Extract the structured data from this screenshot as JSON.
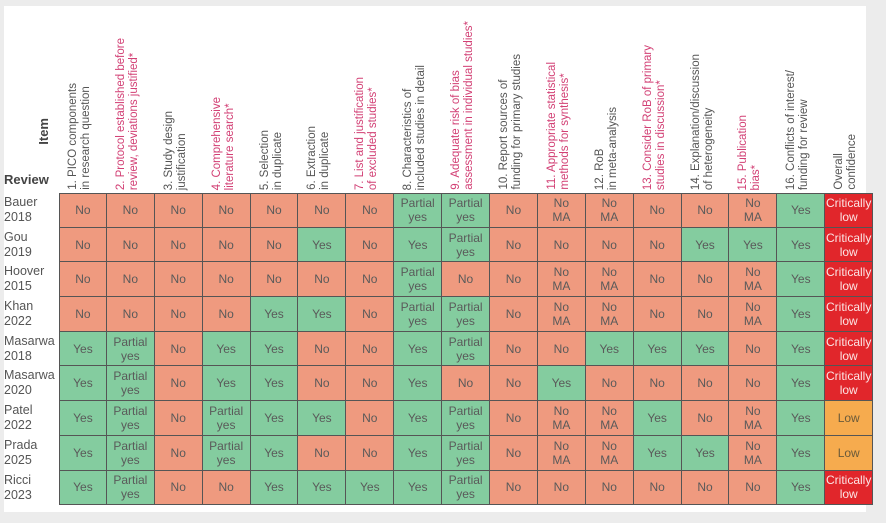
{
  "labels": {
    "item": "Item",
    "review": "Review"
  },
  "colors": {
    "no": "#ef9a7f",
    "yes": "#84cc9f",
    "critically_low": "#e1262b",
    "low": "#f6ab4e",
    "highlight_text": "#d23f74"
  },
  "headers": [
    {
      "lines": [
        "1. PICO components",
        "in research question"
      ],
      "highlight": false
    },
    {
      "lines": [
        "2. Protocol established before",
        "review, deviations justified*"
      ],
      "highlight": true
    },
    {
      "lines": [
        "3. Study design",
        "justification"
      ],
      "highlight": false
    },
    {
      "lines": [
        "4. Comprehensive",
        "literature search*"
      ],
      "highlight": true
    },
    {
      "lines": [
        "5. Selection",
        "in duplicate"
      ],
      "highlight": false
    },
    {
      "lines": [
        "6. Extraction",
        "in duplicate"
      ],
      "highlight": false
    },
    {
      "lines": [
        "7. List and justification",
        "of excluded studies*"
      ],
      "highlight": true
    },
    {
      "lines": [
        "8. Characteristics of",
        "included studies in detail"
      ],
      "highlight": false
    },
    {
      "lines": [
        "9. Adequate risk of bias",
        "assessment in individual studies*"
      ],
      "highlight": true
    },
    {
      "lines": [
        "10. Report sources of",
        "funding for primary studies"
      ],
      "highlight": false
    },
    {
      "lines": [
        "11. Appropriate statistical",
        "methods for synthesis*"
      ],
      "highlight": true
    },
    {
      "lines": [
        "12. RoB",
        "in meta-analysis"
      ],
      "highlight": false
    },
    {
      "lines": [
        "13. Consider RoB of primary",
        "studies in discussion*"
      ],
      "highlight": true
    },
    {
      "lines": [
        "14. Explanation/discussion",
        "of heterogeneity"
      ],
      "highlight": false
    },
    {
      "lines": [
        "15. Publication",
        "bias*"
      ],
      "highlight": true
    },
    {
      "lines": [
        "16. Conflicts of interest/",
        "funding for review"
      ],
      "highlight": false
    },
    {
      "lines": [
        "Overall",
        "confidence"
      ],
      "highlight": false
    }
  ],
  "rows": [
    {
      "name": [
        "Bauer",
        "2018"
      ],
      "cells": [
        "No",
        "No",
        "No",
        "No",
        "No",
        "No",
        "No",
        "Partial yes",
        "Partial yes",
        "No",
        "No MA",
        "No MA",
        "No",
        "No",
        "No MA",
        "Yes"
      ],
      "overall": "Critically low"
    },
    {
      "name": [
        "Gou",
        "2019"
      ],
      "cells": [
        "No",
        "No",
        "No",
        "No",
        "No",
        "Yes",
        "No",
        "Yes",
        "Partial yes",
        "No",
        "No",
        "No",
        "No",
        "Yes",
        "Yes",
        "Yes"
      ],
      "overall": "Critically low"
    },
    {
      "name": [
        "Hoover",
        "2015"
      ],
      "cells": [
        "No",
        "No",
        "No",
        "No",
        "No",
        "No",
        "No",
        "Partial yes",
        "No",
        "No",
        "No MA",
        "No MA",
        "No",
        "No",
        "No MA",
        "Yes"
      ],
      "overall": "Critically low"
    },
    {
      "name": [
        "Khan",
        "2022"
      ],
      "cells": [
        "No",
        "No",
        "No",
        "No",
        "Yes",
        "Yes",
        "No",
        "Partial yes",
        "Partial yes",
        "No",
        "No MA",
        "No MA",
        "No",
        "No",
        "No MA",
        "Yes"
      ],
      "overall": "Critically low"
    },
    {
      "name": [
        "Masarwa",
        "2018"
      ],
      "cells": [
        "Yes",
        "Partial yes",
        "No",
        "Yes",
        "Yes",
        "No",
        "No",
        "Yes",
        "Partial yes",
        "No",
        "No",
        "Yes",
        "Yes",
        "Yes",
        "No",
        "Yes"
      ],
      "overall": "Critically low"
    },
    {
      "name": [
        "Masarwa",
        "2020"
      ],
      "cells": [
        "Yes",
        "Partial yes",
        "No",
        "Yes",
        "Yes",
        "No",
        "No",
        "Yes",
        "No",
        "No",
        "Yes",
        "No",
        "No",
        "No",
        "No",
        "Yes"
      ],
      "overall": "Critically low"
    },
    {
      "name": [
        "Patel",
        "2022"
      ],
      "cells": [
        "Yes",
        "Partial yes",
        "No",
        "Partial yes",
        "Yes",
        "Yes",
        "No",
        "Yes",
        "Partial yes",
        "No",
        "No MA",
        "No MA",
        "Yes",
        "No",
        "No MA",
        "Yes"
      ],
      "overall": "Low"
    },
    {
      "name": [
        "Prada",
        "2025"
      ],
      "cells": [
        "Yes",
        "Partial yes",
        "No",
        "Partial yes",
        "Yes",
        "No",
        "No",
        "Yes",
        "Partial yes",
        "No",
        "No MA",
        "No MA",
        "Yes",
        "Yes",
        "No MA",
        "Yes"
      ],
      "overall": "Low"
    },
    {
      "name": [
        "Ricci",
        "2023"
      ],
      "cells": [
        "Yes",
        "Partial yes",
        "No",
        "No",
        "Yes",
        "Yes",
        "Yes",
        "Yes",
        "Partial yes",
        "No",
        "No",
        "No",
        "No",
        "No",
        "No",
        "Yes"
      ],
      "overall": "Critically low"
    }
  ]
}
